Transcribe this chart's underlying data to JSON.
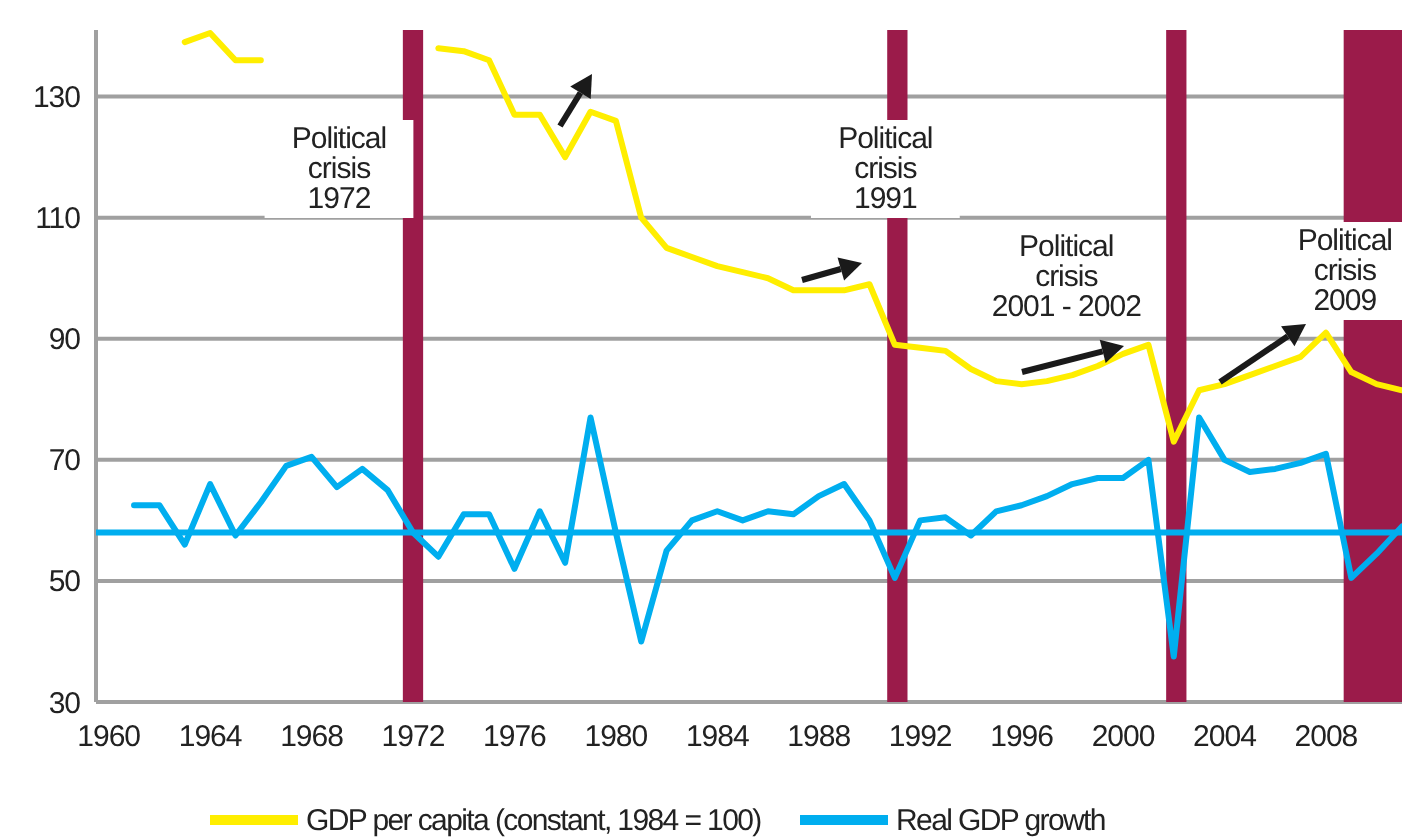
{
  "chart_data": {
    "type": "line",
    "x": [
      1961,
      1962,
      1963,
      1964,
      1965,
      1966,
      1967,
      1968,
      1969,
      1970,
      1971,
      1972,
      1973,
      1974,
      1975,
      1976,
      1977,
      1978,
      1979,
      1980,
      1981,
      1982,
      1983,
      1984,
      1985,
      1986,
      1987,
      1988,
      1989,
      1990,
      1991,
      1992,
      1993,
      1994,
      1995,
      1996,
      1997,
      1998,
      1999,
      2000,
      2001,
      2002,
      2003,
      2004,
      2005,
      2006,
      2007,
      2008,
      2009,
      2010,
      2011
    ],
    "series": [
      {
        "name": "GDP per capita (constant, 1984 = 100)",
        "color": "#ffee00",
        "values": [
          null,
          null,
          139,
          140.5,
          136,
          136,
          null,
          null,
          null,
          null,
          null,
          null,
          138,
          137.5,
          136,
          127,
          127,
          120,
          127.5,
          126,
          110,
          105,
          103.5,
          102,
          101,
          100,
          98,
          98,
          98,
          99,
          89,
          88.5,
          88,
          85,
          83,
          82.5,
          83,
          84,
          85.5,
          87.5,
          89,
          73,
          81.5,
          82.5,
          84,
          85.5,
          87,
          91,
          84.5,
          82.5,
          81.5
        ]
      },
      {
        "name": "Real GDP growth",
        "color": "#00aeef",
        "values": [
          62.5,
          62.5,
          56,
          66,
          57.5,
          63,
          69,
          70.5,
          65.5,
          68.5,
          65,
          58,
          54,
          61,
          61,
          52,
          61.5,
          53,
          77,
          58,
          40,
          55,
          60,
          61.5,
          60,
          61.5,
          61,
          64,
          66,
          60,
          50.5,
          60,
          60.5,
          57.5,
          61.5,
          62.5,
          64,
          66,
          67,
          67,
          70,
          37.5,
          77,
          70,
          68,
          68.5,
          69.5,
          71,
          50.5,
          54.5,
          59
        ]
      }
    ],
    "xlim": [
      1959.5,
      2011
    ],
    "xticks": [
      1960,
      1964,
      1968,
      1972,
      1976,
      1980,
      1984,
      1988,
      1992,
      1996,
      2000,
      2004,
      2008
    ],
    "ylim": [
      30,
      141
    ],
    "yticks": [
      30,
      50,
      70,
      90,
      110,
      130
    ],
    "grid": "y",
    "legend": "bottom",
    "line_style": "solid",
    "marker": "none",
    "ref_lines": [
      {
        "axis": "y",
        "value": 58,
        "color": "#00aeef"
      }
    ],
    "bands": [
      {
        "axis": "x",
        "from": 1971.6,
        "to": 1972.4,
        "label": "Political\ncrisis\n1972",
        "color": "#9b1b4a"
      },
      {
        "axis": "x",
        "from": 1990.7,
        "to": 1991.5,
        "label": "Political\ncrisis\n1991",
        "color": "#9b1b4a"
      },
      {
        "axis": "x",
        "from": 2001.7,
        "to": 2002.5,
        "label": "Political\ncrisis\n2001 - 2002",
        "color": "#9b1b4a"
      },
      {
        "axis": "x",
        "from": 2008.7,
        "to": 2011,
        "label": "Political\ncrisis\n2009",
        "color": "#9b1b4a"
      }
    ]
  }
}
